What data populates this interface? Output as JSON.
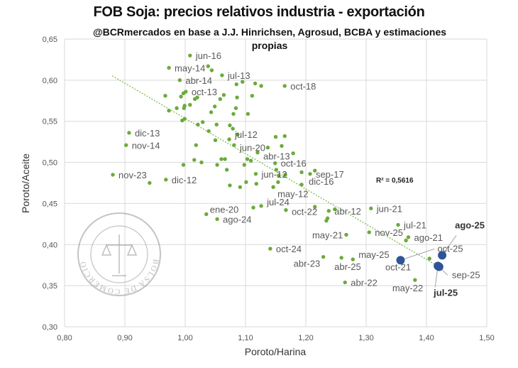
{
  "chart_data": {
    "type": "scatter",
    "title": "FOB Soja: precios relativos industria - exportación",
    "subtitle_lines": [
      "@BCRmercados en base a  J.J. Hinrichsen, Agrosud,  BCBA y estimaciones",
      "propias"
    ],
    "xlabel": "Poroto/Harina",
    "ylabel": "Poroto/Aceite",
    "xlim": [
      0.8,
      1.5
    ],
    "ylim": [
      0.3,
      0.65
    ],
    "x_ticks": [
      "0,80",
      "0,90",
      "1,00",
      "1,10",
      "1,20",
      "1,30",
      "1,40",
      "1,50"
    ],
    "y_ticks": [
      "0,30",
      "0,35",
      "0,40",
      "0,45",
      "0,50",
      "0,55",
      "0,60",
      "0,65"
    ],
    "grid": true,
    "colors": {
      "history": "#6aab3c",
      "recent": "#2f5597",
      "trend": "#7cc04f"
    },
    "trendline": {
      "type": "linear",
      "slope": -0.4286,
      "intercept": 0.982,
      "x_range": [
        0.879,
        1.425
      ],
      "r2_label": "R² = 0,5616"
    },
    "watermark_text": "BOLSA DE COMERCIO DE ROSARIO",
    "unlabeled_points": [
      [
        1.038,
        0.617
      ],
      [
        1.044,
        0.612
      ],
      [
        1.085,
        0.595
      ],
      [
        1.095,
        0.598
      ],
      [
        1.116,
        0.596
      ],
      [
        1.126,
        0.593
      ],
      [
        0.967,
        0.581
      ],
      [
        0.993,
        0.58
      ],
      [
        0.997,
        0.584
      ],
      [
        1.016,
        0.577
      ],
      [
        1.02,
        0.579
      ],
      [
        1.058,
        0.577
      ],
      [
        1.064,
        0.582
      ],
      [
        1.086,
        0.579
      ],
      [
        1.111,
        0.581
      ],
      [
        0.999,
        0.569
      ],
      [
        0.998,
        0.566
      ],
      [
        1.008,
        0.57
      ],
      [
        0.986,
        0.566
      ],
      [
        0.973,
        0.563
      ],
      [
        1.049,
        0.568
      ],
      [
        1.043,
        0.561
      ],
      [
        1.084,
        0.566
      ],
      [
        1.08,
        0.559
      ],
      [
        1.104,
        0.559
      ],
      [
        0.995,
        0.551
      ],
      [
        0.999,
        0.553
      ],
      [
        1.029,
        0.549
      ],
      [
        1.021,
        0.546
      ],
      [
        1.052,
        0.546
      ],
      [
        1.074,
        0.545
      ],
      [
        1.079,
        0.541
      ],
      [
        1.039,
        0.538
      ],
      [
        1.087,
        0.534
      ],
      [
        1.018,
        0.521
      ],
      [
        1.05,
        0.527
      ],
      [
        1.137,
        0.518
      ],
      [
        1.15,
        0.531
      ],
      [
        1.165,
        0.532
      ],
      [
        1.16,
        0.52
      ],
      [
        1.179,
        0.511
      ],
      [
        1.015,
        0.503
      ],
      [
        1.027,
        0.5
      ],
      [
        0.997,
        0.497
      ],
      [
        1.06,
        0.504
      ],
      [
        1.066,
        0.504
      ],
      [
        1.053,
        0.497
      ],
      [
        1.069,
        0.491
      ],
      [
        1.098,
        0.497
      ],
      [
        1.103,
        0.504
      ],
      [
        1.109,
        0.502
      ],
      [
        1.151,
        0.491
      ],
      [
        1.193,
        0.488
      ],
      [
        1.215,
        0.49
      ],
      [
        1.155,
        0.484
      ],
      [
        0.941,
        0.475
      ],
      [
        1.074,
        0.472
      ],
      [
        1.091,
        0.47
      ],
      [
        1.101,
        0.476
      ],
      [
        1.118,
        0.474
      ],
      [
        1.154,
        0.476
      ],
      [
        1.166,
        0.485
      ],
      [
        1.113,
        0.445
      ],
      [
        1.215,
        0.446
      ],
      [
        1.248,
        0.443
      ],
      [
        1.236,
        0.432
      ],
      [
        1.234,
        0.429
      ],
      [
        1.366,
        0.405
      ],
      [
        1.405,
        0.383
      ]
    ],
    "labeled_points": [
      {
        "x": 1.008,
        "y": 0.63,
        "label": "jun-16"
      },
      {
        "x": 0.973,
        "y": 0.615,
        "label": "may-14"
      },
      {
        "x": 1.061,
        "y": 0.606,
        "label": "jul-13"
      },
      {
        "x": 0.991,
        "y": 0.6,
        "label": "abr-14"
      },
      {
        "x": 1.165,
        "y": 0.593,
        "label": "oct-18"
      },
      {
        "x": 1.001,
        "y": 0.586,
        "label": "oct-13"
      },
      {
        "x": 0.907,
        "y": 0.536,
        "label": "dic-13"
      },
      {
        "x": 0.902,
        "y": 0.521,
        "label": "nov-14"
      },
      {
        "x": 1.073,
        "y": 0.528,
        "label": "jul-12"
      },
      {
        "x": 1.081,
        "y": 0.521,
        "label": "jun-20"
      },
      {
        "x": 1.12,
        "y": 0.512,
        "label": "abr-13"
      },
      {
        "x": 1.149,
        "y": 0.499,
        "label": "oct-16"
      },
      {
        "x": 0.88,
        "y": 0.485,
        "label": "nov-23"
      },
      {
        "x": 0.968,
        "y": 0.479,
        "label": "dic-12"
      },
      {
        "x": 1.117,
        "y": 0.486,
        "label": "jun-12"
      },
      {
        "x": 1.146,
        "y": 0.47,
        "label": "may-12"
      },
      {
        "x": 1.207,
        "y": 0.486,
        "label": "sep-17"
      },
      {
        "x": 1.193,
        "y": 0.473,
        "label": "dic-16"
      },
      {
        "x": 1.126,
        "y": 0.447,
        "label": "jul-24"
      },
      {
        "x": 1.167,
        "y": 0.442,
        "label": "oct-22"
      },
      {
        "x": 1.238,
        "y": 0.441,
        "label": "abr-12"
      },
      {
        "x": 1.308,
        "y": 0.444,
        "label": "jun-21"
      },
      {
        "x": 1.035,
        "y": 0.437,
        "label": "ene-20"
      },
      {
        "x": 1.053,
        "y": 0.431,
        "label": "ago-24"
      },
      {
        "x": 1.353,
        "y": 0.424,
        "label": "jul-21"
      },
      {
        "x": 1.267,
        "y": 0.412,
        "label": "may-21"
      },
      {
        "x": 1.305,
        "y": 0.415,
        "label": "nov-25"
      },
      {
        "x": 1.37,
        "y": 0.409,
        "label": "ago-21"
      },
      {
        "x": 1.141,
        "y": 0.395,
        "label": "oct-24"
      },
      {
        "x": 1.229,
        "y": 0.385,
        "label": "abr-23"
      },
      {
        "x": 1.259,
        "y": 0.384,
        "label": "abr-25"
      },
      {
        "x": 1.278,
        "y": 0.382,
        "label": "may-25"
      },
      {
        "x": 1.265,
        "y": 0.354,
        "label": "abr-22"
      },
      {
        "x": 1.381,
        "y": 0.357,
        "label": "may-22"
      },
      {
        "x": 1.36,
        "y": 0.38,
        "label": "oct-21"
      }
    ],
    "recent_points": [
      {
        "x": 1.357,
        "y": 0.381,
        "label": "oct-25",
        "bold": false
      },
      {
        "x": 1.426,
        "y": 0.387,
        "label": "ago-25",
        "bold": true
      },
      {
        "x": 1.421,
        "y": 0.373,
        "label": "sep-25",
        "bold": false
      },
      {
        "x": 1.419,
        "y": 0.374,
        "label": "jul-25",
        "bold": true
      }
    ]
  }
}
